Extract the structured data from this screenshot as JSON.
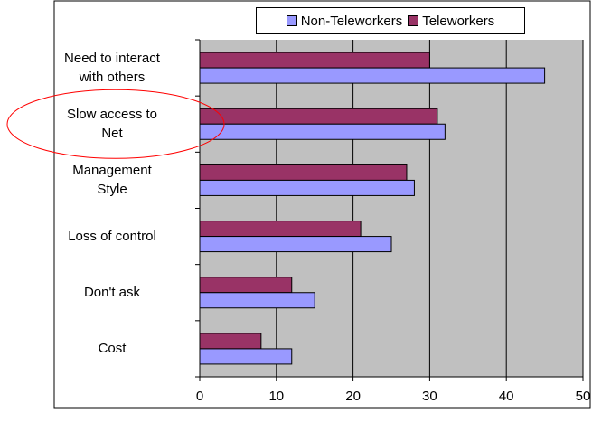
{
  "chart_data": {
    "type": "bar",
    "orientation": "horizontal",
    "title": "",
    "xlabel": "",
    "ylabel": "",
    "categories": [
      "Need to interact\nwith others",
      "Slow access to\nNet",
      "Management\nStyle",
      "Loss of control",
      "Don't ask",
      "Cost"
    ],
    "series": [
      {
        "name": "Non-Teleworkers",
        "color": "#9999ff",
        "values": [
          45,
          32,
          28,
          25,
          15,
          12
        ]
      },
      {
        "name": "Teleworkers",
        "color": "#993366",
        "values": [
          30,
          31,
          27,
          21,
          12,
          8
        ]
      }
    ],
    "xlim": [
      0,
      50
    ],
    "xticks": [
      "0",
      "10",
      "20",
      "30",
      "40",
      "50"
    ],
    "grid": "vertical",
    "plot_background": "#c0c0c0",
    "legend": {
      "position": "top-right",
      "entries": [
        "Non-Teleworkers",
        "Teleworkers"
      ]
    },
    "annotations": [
      {
        "type": "ellipse",
        "target_category": "Slow access to\nNet",
        "color": "#ff0000"
      }
    ]
  }
}
